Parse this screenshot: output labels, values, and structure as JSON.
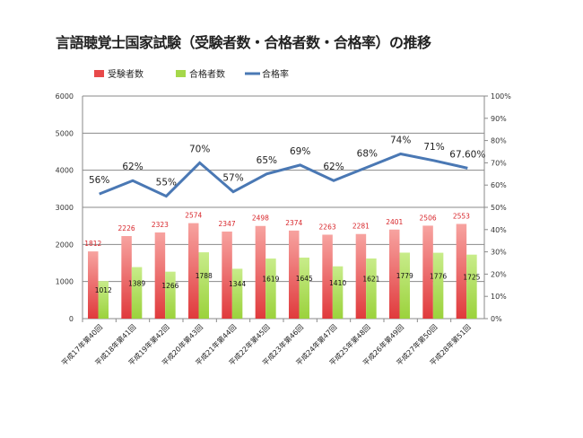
{
  "chart_data": {
    "type": "bar",
    "title": "言語聴覚士国家試験（受験者数・合格者数・合格率）の推移",
    "categories": [
      "平成17年第40回",
      "平成18年第41回",
      "平成19年第42回",
      "平成20年第43回",
      "平成21年第44回",
      "平成22年第45回",
      "平成23年第46回",
      "平成24年第47回",
      "平成25年第48回",
      "平成26年第49回",
      "平成27年第50回",
      "平成28年第51回"
    ],
    "series": [
      {
        "name": "受験者数",
        "type": "bar",
        "axis": "left",
        "color": "#e8494a",
        "values": [
          1812,
          2226,
          2323,
          2574,
          2347,
          2498,
          2374,
          2263,
          2281,
          2401,
          2506,
          2553
        ]
      },
      {
        "name": "合格者数",
        "type": "bar",
        "axis": "left",
        "color": "#a5d84a",
        "values": [
          1012,
          1389,
          1266,
          1788,
          1344,
          1619,
          1645,
          1410,
          1621,
          1779,
          1776,
          1725
        ]
      },
      {
        "name": "合格率",
        "type": "line",
        "axis": "right",
        "color": "#4a78b4",
        "values": [
          56,
          62,
          55,
          70,
          57,
          65,
          69,
          62,
          68,
          74,
          71,
          67.6
        ],
        "labels": [
          "56%",
          "62%",
          "55%",
          "70%",
          "57%",
          "65%",
          "69%",
          "62%",
          "68%",
          "74%",
          "71%",
          "67.60%"
        ]
      }
    ],
    "ylim": [
      0,
      6000
    ],
    "yticks": [
      "0",
      "1000",
      "2000",
      "3000",
      "4000",
      "5000",
      "6000"
    ],
    "y2lim": [
      0,
      100
    ],
    "y2ticks": [
      "0%",
      "10%",
      "20%",
      "30%",
      "40%",
      "50%",
      "60%",
      "70%",
      "80%",
      "90%",
      "100%"
    ],
    "grid": true,
    "legend": "top"
  }
}
